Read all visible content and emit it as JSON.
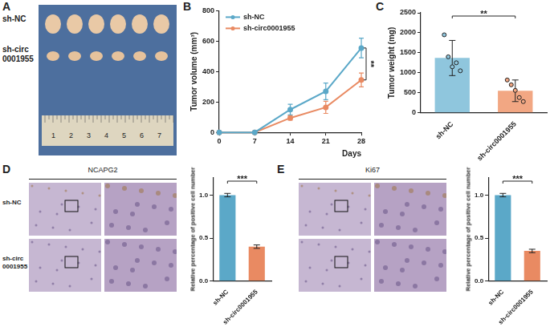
{
  "panel_labels": [
    "A",
    "B",
    "C",
    "D",
    "E"
  ],
  "photo": {
    "row_labels": [
      [
        "sh-NC"
      ],
      [
        "sh-circ",
        "0001955"
      ]
    ],
    "ruler": [
      1,
      2,
      3,
      4,
      5,
      6,
      7
    ]
  },
  "chart_data": [
    {
      "type": "line",
      "x_label": "Days",
      "y_label": "Tumor volume (mm³)",
      "x": [
        0,
        7,
        14,
        21,
        28
      ],
      "xlim": [
        0,
        28
      ],
      "xticks": [
        0,
        7,
        14,
        21,
        28
      ],
      "ylim": [
        0,
        800
      ],
      "yticks": [
        0,
        200,
        400,
        600,
        800
      ],
      "grid": false,
      "legend": "top-left",
      "annotation": "**",
      "series": [
        {
          "name": "sh-NC",
          "color": "#5ba8c8",
          "marker": "circle",
          "values": [
            0,
            0,
            150,
            270,
            555
          ],
          "errors": [
            0,
            0,
            35,
            55,
            65
          ]
        },
        {
          "name": "sh-circ0001955",
          "color": "#e98a62",
          "marker": "circle",
          "values": [
            0,
            0,
            95,
            165,
            345
          ],
          "errors": [
            0,
            0,
            15,
            40,
            45
          ]
        }
      ]
    },
    {
      "type": "bar",
      "y_label": "Tumor weight (mg)",
      "categories": [
        "sh-NC",
        "sh-circ0001955"
      ],
      "values": [
        1370,
        550
      ],
      "errors": [
        440,
        270
      ],
      "points": [
        [
          1950,
          1400,
          1150,
          1250,
          1050
        ],
        [
          820,
          700,
          560,
          380,
          280
        ]
      ],
      "colors": [
        "#8fc6dd",
        "#f2a783"
      ],
      "ylim": [
        0,
        2500
      ],
      "yticks": [
        0,
        500,
        1000,
        1500,
        2000,
        2500
      ],
      "grid": false,
      "annotation": "**"
    },
    {
      "type": "bar",
      "y_label": "Relative percentage of positive cell number",
      "categories": [
        "sh-NC",
        "sh-circ0001955"
      ],
      "values": [
        1.0,
        0.4
      ],
      "errors": [
        0.02,
        0.02
      ],
      "colors": [
        "#5ba8c8",
        "#e98a62"
      ],
      "ylim": [
        0,
        1.2
      ],
      "yticks": [
        {
          "value": 0,
          "label": "0.0"
        },
        {
          "value": 0.5,
          "label": "0.5"
        },
        {
          "value": 1,
          "label": "1.0"
        }
      ],
      "grid": false,
      "annotation": "***"
    },
    {
      "type": "bar",
      "y_label": "Relative percentage of positive cell number",
      "categories": [
        "sh-NC",
        "sh-circ0001955"
      ],
      "values": [
        1.0,
        0.35
      ],
      "errors": [
        0.02,
        0.02
      ],
      "colors": [
        "#5ba8c8",
        "#e98a62"
      ],
      "ylim": [
        0,
        1.2
      ],
      "yticks": [
        {
          "value": 0,
          "label": "0.0"
        },
        {
          "value": 0.5,
          "label": "0.5"
        },
        {
          "value": 1,
          "label": "1.0"
        }
      ],
      "grid": false,
      "annotation": "***"
    }
  ],
  "stains": [
    {
      "title": "NCAPG2",
      "row_labels": [
        [
          "sh-NC"
        ],
        [
          "sh-circ",
          "0001955"
        ]
      ]
    },
    {
      "title": "Ki67"
    }
  ]
}
